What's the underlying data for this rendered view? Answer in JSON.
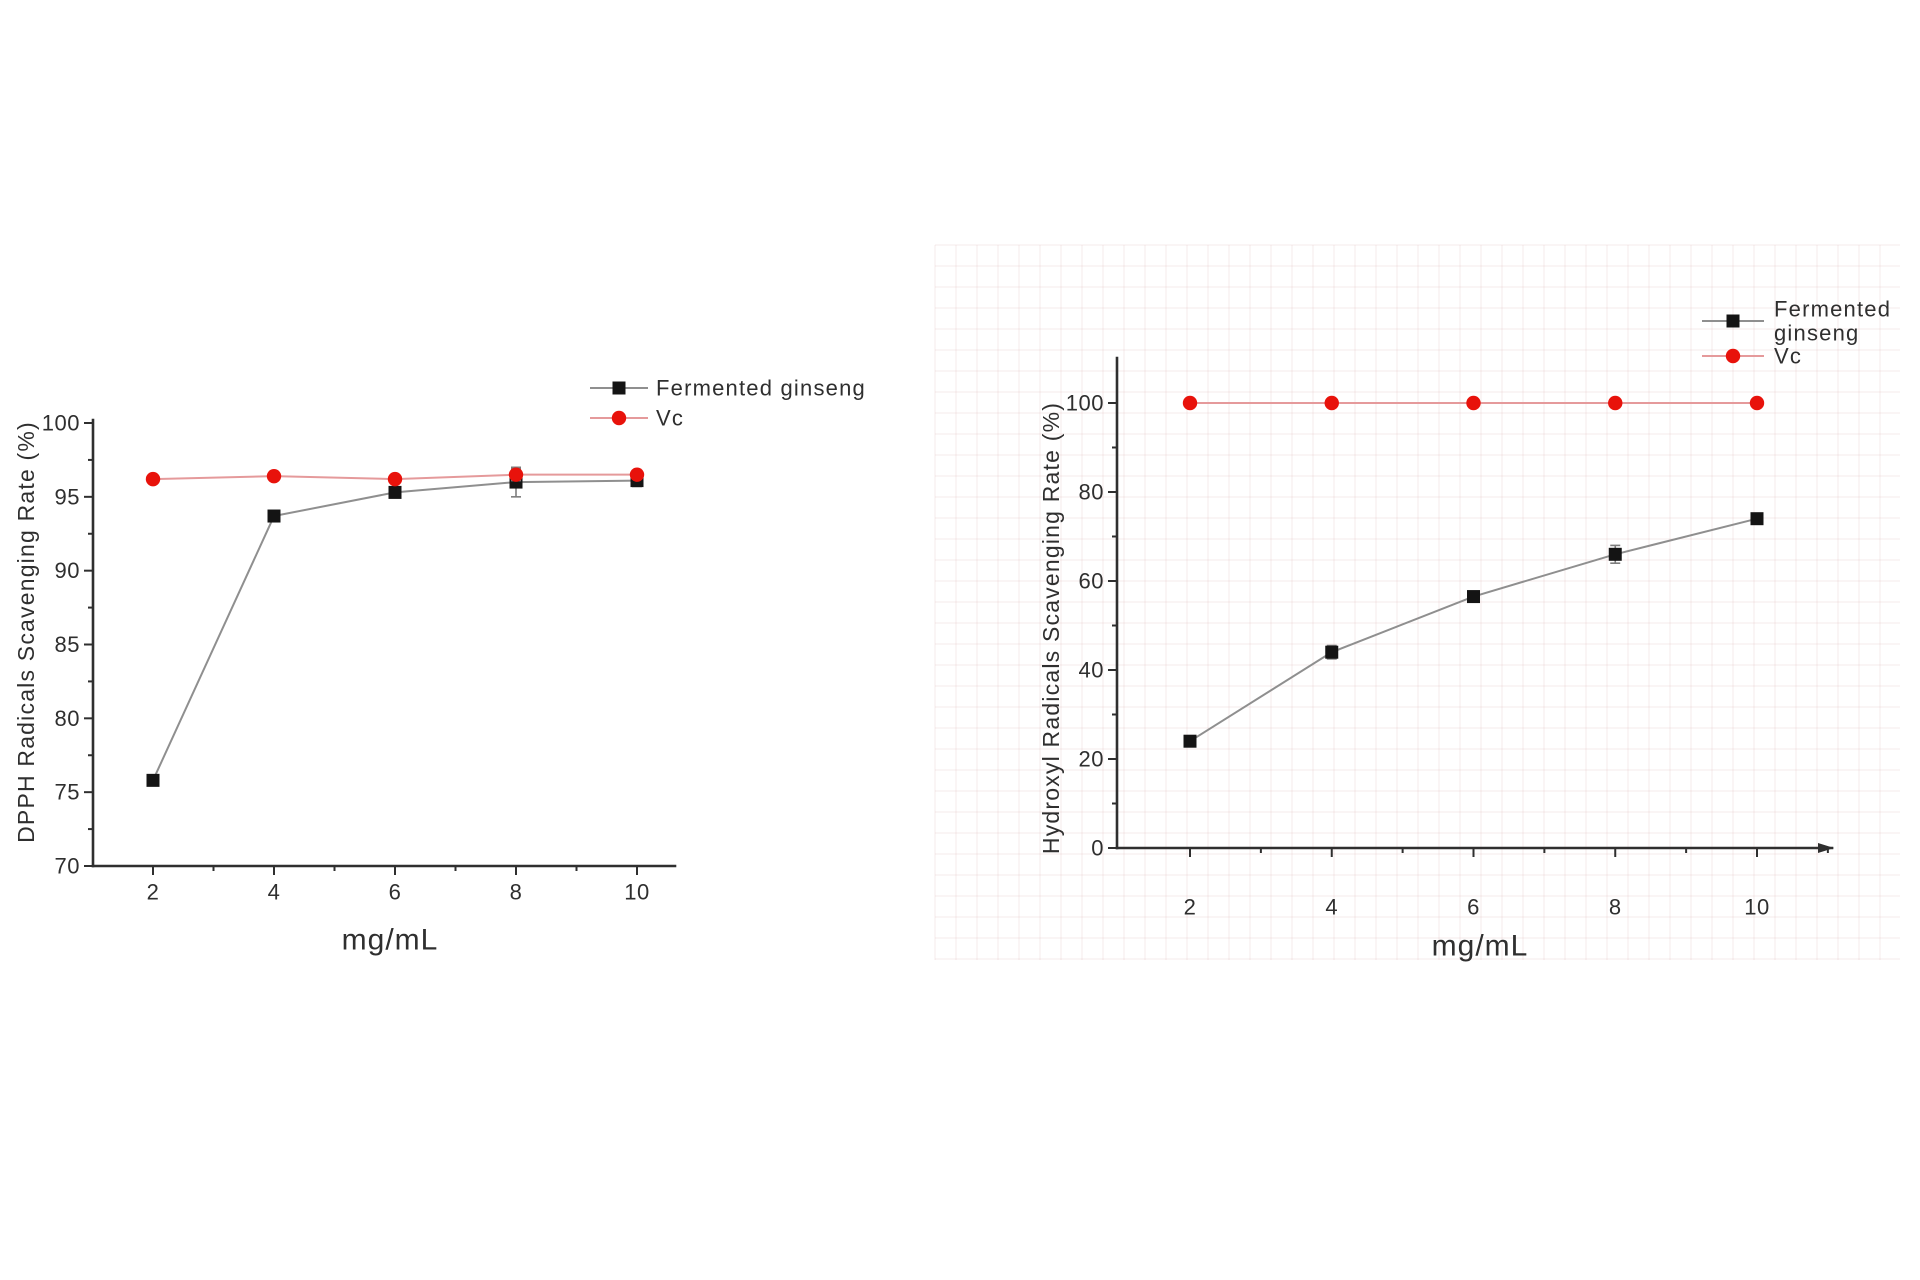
{
  "page": {
    "background_color": "#ffffff",
    "description_texts": {
      "left_chart_xlabel": "mg/mL",
      "right_chart_xlabel": "mg/mL"
    }
  },
  "colors": {
    "fermented_marker": "#141414",
    "fermented_line": "#8f8f8f",
    "vc_marker": "#e8120b",
    "vc_line": "#e59a9b",
    "axis": "#2f2f2f",
    "error_bar": "#7d7d7d",
    "faint_grid": "rgba(222,189,189,0.30)"
  },
  "chart_data": [
    {
      "type": "line",
      "title": "",
      "xlabel": "mg/mL",
      "ylabel": "DPPH Radicals Scavenging Rate (%)",
      "x": [
        2,
        4,
        6,
        8,
        10
      ],
      "xlim": [
        2,
        10
      ],
      "ylim": [
        70,
        100
      ],
      "x_ticks": [
        2,
        4,
        6,
        8,
        10
      ],
      "x_minor_ticks": [
        3,
        5,
        7,
        9
      ],
      "y_ticks": [
        70,
        75,
        80,
        85,
        90,
        95,
        100
      ],
      "y_minor_ticks": [
        72.5,
        77.5,
        82.5,
        87.5,
        92.5,
        97.5
      ],
      "grid": false,
      "legend_position": "top-right",
      "series": [
        {
          "name": "Fermented ginseng",
          "legend_lines": [
            "Fermented ginseng"
          ],
          "marker": "square",
          "marker_color": "#141414",
          "line_color": "#8f8f8f",
          "values": [
            75.8,
            93.7,
            95.3,
            96.0,
            96.1
          ],
          "errors": [
            0,
            0,
            0,
            1.0,
            0.4
          ]
        },
        {
          "name": "Vc",
          "legend_lines": [
            "Vc"
          ],
          "marker": "circle",
          "marker_color": "#e8120b",
          "line_color": "#e59a9b",
          "values": [
            96.2,
            96.4,
            96.2,
            96.5,
            96.5
          ],
          "errors": [
            0,
            0,
            0,
            0.4,
            0.3
          ]
        }
      ]
    },
    {
      "type": "line",
      "title": "",
      "xlabel": "mg/mL",
      "ylabel": "Hydroxyl Radicals Scavenging Rate (%)",
      "x": [
        2,
        4,
        6,
        8,
        10
      ],
      "xlim": [
        2,
        10
      ],
      "ylim": [
        0,
        100
      ],
      "x_ticks": [
        2,
        4,
        6,
        8,
        10
      ],
      "x_minor_ticks": [
        3,
        5,
        7,
        9,
        11
      ],
      "y_ticks": [
        0,
        20,
        40,
        60,
        80,
        100
      ],
      "y_minor_ticks": [
        10,
        30,
        50,
        70,
        90
      ],
      "grid": false,
      "legend_position": "top-right",
      "series": [
        {
          "name": "Fermented ginseng",
          "legend_lines": [
            "Fermented",
            "ginseng"
          ],
          "marker": "square",
          "marker_color": "#141414",
          "line_color": "#8f8f8f",
          "values": [
            24,
            44,
            56.5,
            66,
            74
          ],
          "errors": [
            1.0,
            1.5,
            0.8,
            2.0,
            1.0
          ]
        },
        {
          "name": "Vc",
          "legend_lines": [
            "Vc"
          ],
          "marker": "circle",
          "marker_color": "#e8120b",
          "line_color": "#e59a9b",
          "values": [
            100,
            100,
            100,
            100,
            100
          ],
          "errors": [
            0,
            0,
            0,
            0,
            0
          ]
        }
      ]
    }
  ]
}
